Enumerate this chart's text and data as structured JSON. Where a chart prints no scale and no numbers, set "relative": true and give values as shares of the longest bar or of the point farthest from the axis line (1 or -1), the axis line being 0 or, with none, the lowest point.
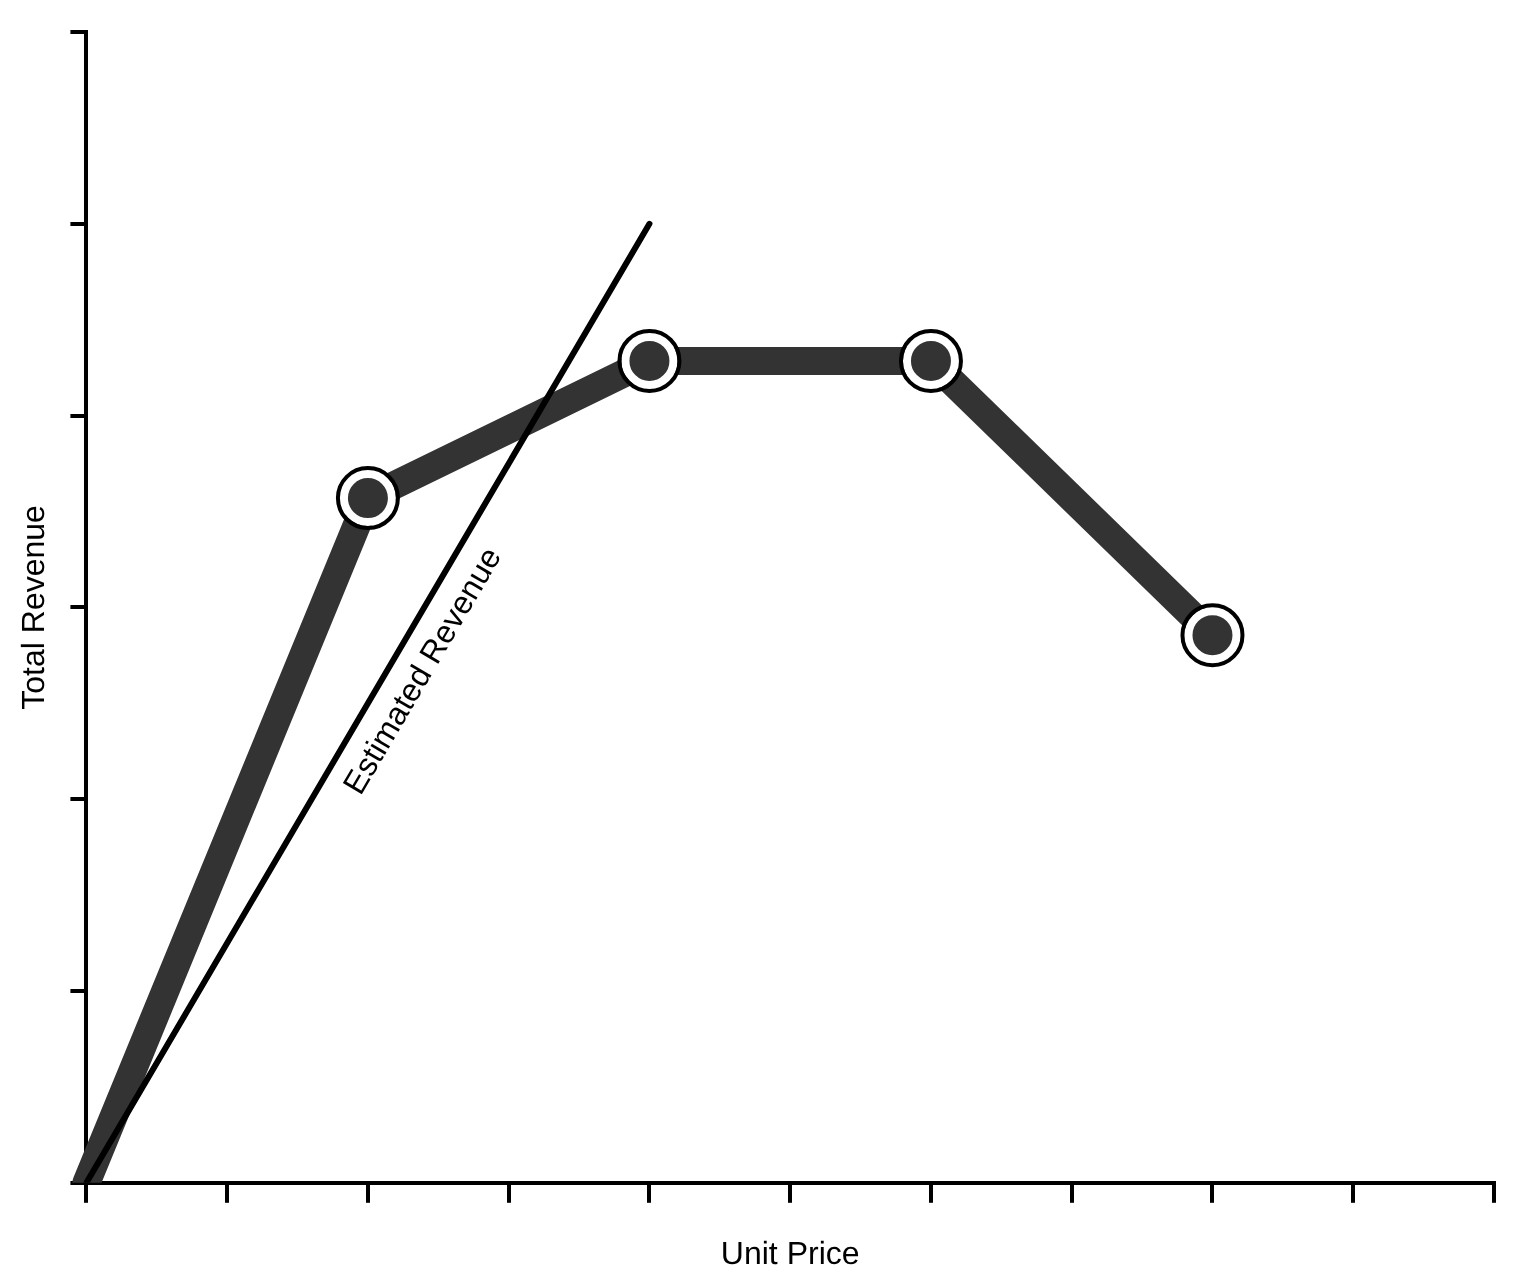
{
  "chart_data": {
    "type": "line",
    "xlabel": "Unit Price",
    "ylabel": "Total Revenue",
    "relative": true,
    "legend": false,
    "grid": false,
    "categories": [
      null,
      null,
      null,
      null,
      null,
      null,
      null,
      null,
      null,
      null,
      null
    ],
    "series": [
      {
        "color": "#333333",
        "marker": "circle",
        "values": [
          0,
          null,
          0.714,
          null,
          0.857,
          null,
          0.857,
          null,
          0.571,
          null,
          null
        ]
      },
      {
        "name": "Estimated Revenue",
        "color": "#000000",
        "marker": "none",
        "values": [
          0,
          null,
          null,
          null,
          1,
          null,
          null,
          null,
          null,
          null,
          null
        ]
      }
    ]
  }
}
